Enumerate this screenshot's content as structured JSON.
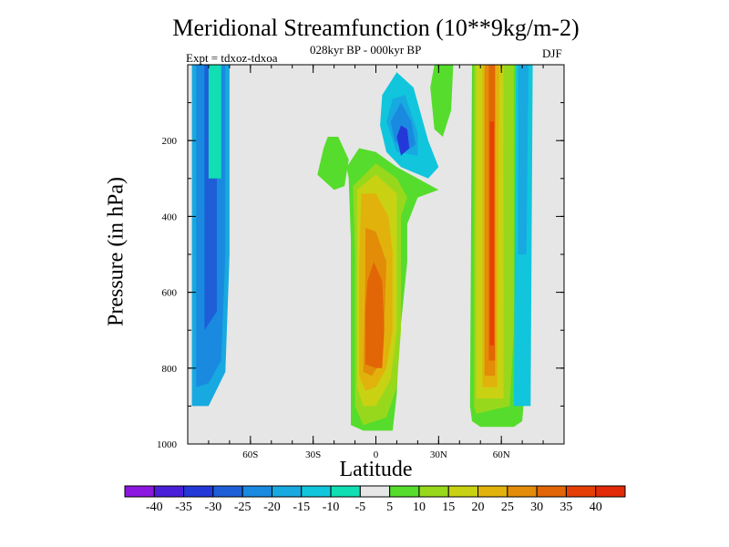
{
  "chart_data": {
    "type": "heatmap",
    "title": "Meridional Streamfunction (10**9kg/m-2)",
    "subtitle": "028kyr BP - 000kyr BP",
    "annotation_left": "Expt = tdxoz-tdxoa",
    "annotation_right": "DJF",
    "xlabel": "Latitude",
    "ylabel": "Pressure (in hPa)",
    "xlim": [
      -90,
      90
    ],
    "ylim": [
      1000,
      0
    ],
    "x_ticks": [
      {
        "value": -60,
        "label": "60S"
      },
      {
        "value": -30,
        "label": "30S"
      },
      {
        "value": 0,
        "label": "0"
      },
      {
        "value": 30,
        "label": "30N"
      },
      {
        "value": 60,
        "label": "60N"
      }
    ],
    "y_ticks": [
      {
        "value": 200,
        "label": "200"
      },
      {
        "value": 400,
        "label": "400"
      },
      {
        "value": 600,
        "label": "600"
      },
      {
        "value": 800,
        "label": "800"
      },
      {
        "value": 1000,
        "label": "1000"
      }
    ],
    "background_color": "#e6e6e6",
    "colorbar": {
      "levels": [
        "-40",
        "-35",
        "-30",
        "-25",
        "-20",
        "-15",
        "-10",
        "-5",
        "5",
        "10",
        "15",
        "20",
        "25",
        "30",
        "35",
        "40"
      ],
      "colors": [
        "#8c17e0",
        "#4a1fd8",
        "#2438d8",
        "#1e5fd8",
        "#1a8ae0",
        "#17a9e0",
        "#11c6dc",
        "#11dfb3",
        "#e6e6e6",
        "#56dc2c",
        "#98d81c",
        "#c8d212",
        "#e2b20c",
        "#e28c08",
        "#e26606",
        "#e63f05",
        "#e22a08"
      ]
    },
    "regions": [
      {
        "level": "-15",
        "color": "#17a9e0",
        "points": [
          [
            -88,
            900
          ],
          [
            -88,
            0
          ],
          [
            -70,
            0
          ],
          [
            -70,
            500
          ],
          [
            -72,
            810
          ],
          [
            -80,
            900
          ]
        ]
      },
      {
        "level": "-20",
        "color": "#1a8ae0",
        "points": [
          [
            -86,
            850
          ],
          [
            -86,
            0
          ],
          [
            -72,
            0
          ],
          [
            -72,
            500
          ],
          [
            -74,
            780
          ],
          [
            -80,
            840
          ]
        ]
      },
      {
        "level": "-25",
        "color": "#1e5fd8",
        "points": [
          [
            -82,
            700
          ],
          [
            -82,
            0
          ],
          [
            -76,
            0
          ],
          [
            -76,
            650
          ]
        ]
      },
      {
        "level": "-5",
        "color": "#11dfb3",
        "points": [
          [
            -80,
            300
          ],
          [
            -80,
            0
          ],
          [
            -74,
            0
          ],
          [
            -74,
            300
          ]
        ]
      },
      {
        "level": "5",
        "color": "#56dc2c",
        "points": [
          [
            -25,
            220
          ],
          [
            -28,
            290
          ],
          [
            -20,
            330
          ],
          [
            -15,
            320
          ],
          [
            -13,
            250
          ],
          [
            -18,
            190
          ],
          [
            -23,
            190
          ]
        ]
      },
      {
        "level": "-10",
        "color": "#11c6dc",
        "points": [
          [
            2,
            160
          ],
          [
            3,
            80
          ],
          [
            10,
            20
          ],
          [
            18,
            60
          ],
          [
            25,
            200
          ],
          [
            30,
            270
          ],
          [
            25,
            300
          ],
          [
            12,
            270
          ],
          [
            5,
            230
          ]
        ]
      },
      {
        "level": "-15",
        "color": "#17a9e0",
        "points": [
          [
            5,
            150
          ],
          [
            8,
            90
          ],
          [
            14,
            80
          ],
          [
            20,
            180
          ],
          [
            20,
            240
          ],
          [
            10,
            230
          ]
        ]
      },
      {
        "level": "-20",
        "color": "#1a8ae0",
        "points": [
          [
            7,
            150
          ],
          [
            12,
            100
          ],
          [
            17,
            150
          ],
          [
            19,
            210
          ],
          [
            14,
            230
          ],
          [
            9,
            200
          ]
        ]
      },
      {
        "level": "-30",
        "color": "#2438d8",
        "points": [
          [
            10,
            190
          ],
          [
            12,
            160
          ],
          [
            15,
            170
          ],
          [
            16,
            220
          ],
          [
            12,
            240
          ]
        ]
      },
      {
        "level": "5",
        "color": "#56dc2c",
        "points": [
          [
            -12,
            460
          ],
          [
            -13,
            300
          ],
          [
            -14,
            270
          ],
          [
            -8,
            220
          ],
          [
            0,
            230
          ],
          [
            10,
            270
          ],
          [
            20,
            300
          ],
          [
            30,
            330
          ],
          [
            20,
            350
          ],
          [
            15,
            420
          ],
          [
            15,
            520
          ],
          [
            11,
            740
          ],
          [
            10,
            870
          ],
          [
            8,
            965
          ],
          [
            -6,
            965
          ],
          [
            -12,
            950
          ],
          [
            -12,
            800
          ]
        ]
      },
      {
        "level": "10",
        "color": "#98d81c",
        "points": [
          [
            -10,
            500
          ],
          [
            -11,
            320
          ],
          [
            0,
            260
          ],
          [
            10,
            300
          ],
          [
            15,
            350
          ],
          [
            12,
            400
          ],
          [
            12,
            700
          ],
          [
            10,
            850
          ],
          [
            5,
            930
          ],
          [
            -6,
            950
          ],
          [
            -10,
            900
          ]
        ]
      },
      {
        "level": "15",
        "color": "#c8d212",
        "points": [
          [
            -9,
            520
          ],
          [
            -9,
            330
          ],
          [
            0,
            290
          ],
          [
            10,
            340
          ],
          [
            10,
            400
          ],
          [
            10,
            700
          ],
          [
            7,
            830
          ],
          [
            0,
            900
          ],
          [
            -6,
            900
          ],
          [
            -9,
            850
          ]
        ]
      },
      {
        "level": "20",
        "color": "#e2b20c",
        "points": [
          [
            -8,
            540
          ],
          [
            -7,
            340
          ],
          [
            0,
            340
          ],
          [
            6,
            400
          ],
          [
            8,
            500
          ],
          [
            8,
            700
          ],
          [
            5,
            800
          ],
          [
            0,
            850
          ],
          [
            -5,
            860
          ],
          [
            -8,
            820
          ]
        ]
      },
      {
        "level": "25",
        "color": "#e28c08",
        "points": [
          [
            -5,
            550
          ],
          [
            -5,
            430
          ],
          [
            0,
            440
          ],
          [
            5,
            520
          ],
          [
            4,
            690
          ],
          [
            3,
            780
          ],
          [
            -2,
            820
          ],
          [
            -6,
            810
          ]
        ]
      },
      {
        "level": "30",
        "color": "#e26606",
        "points": [
          [
            -5,
            640
          ],
          [
            -4,
            570
          ],
          [
            -1,
            520
          ],
          [
            3,
            570
          ],
          [
            4,
            700
          ],
          [
            3,
            800
          ],
          [
            0,
            800
          ],
          [
            -5,
            790
          ]
        ]
      },
      {
        "level": "5",
        "color": "#56dc2c",
        "points": [
          [
            26,
            60
          ],
          [
            28,
            0
          ],
          [
            37,
            0
          ],
          [
            36,
            120
          ],
          [
            32,
            190
          ],
          [
            28,
            170
          ]
        ]
      },
      {
        "level": "5",
        "color": "#56dc2c",
        "points": [
          [
            45,
            900
          ],
          [
            46,
            0
          ],
          [
            73,
            0
          ],
          [
            72,
            800
          ],
          [
            70,
            940
          ],
          [
            66,
            955
          ],
          [
            50,
            955
          ],
          [
            46,
            940
          ]
        ]
      },
      {
        "level": "10",
        "color": "#98d81c",
        "points": [
          [
            47,
            900
          ],
          [
            47,
            0
          ],
          [
            66,
            0
          ],
          [
            66,
            700
          ],
          [
            64,
            900
          ],
          [
            48,
            920
          ]
        ]
      },
      {
        "level": "15",
        "color": "#c8d212",
        "points": [
          [
            48,
            880
          ],
          [
            48,
            0
          ],
          [
            61,
            0
          ],
          [
            61,
            880
          ]
        ]
      },
      {
        "level": "20",
        "color": "#e2b20c",
        "points": [
          [
            51,
            850
          ],
          [
            51,
            0
          ],
          [
            59,
            0
          ],
          [
            58,
            850
          ]
        ]
      },
      {
        "level": "25",
        "color": "#e28c08",
        "points": [
          [
            52,
            820
          ],
          [
            52,
            0
          ],
          [
            57,
            0
          ],
          [
            57,
            820
          ]
        ]
      },
      {
        "level": "30",
        "color": "#e26606",
        "points": [
          [
            54,
            780
          ],
          [
            54,
            0
          ],
          [
            57,
            0
          ],
          [
            57,
            780
          ]
        ]
      },
      {
        "level": "35",
        "color": "#e63f05",
        "points": [
          [
            54.5,
            740
          ],
          [
            54.5,
            150
          ],
          [
            56.5,
            150
          ],
          [
            56.5,
            740
          ]
        ]
      },
      {
        "level": "-10",
        "color": "#11c6dc",
        "points": [
          [
            66,
            900
          ],
          [
            67,
            0
          ],
          [
            75,
            0
          ],
          [
            74,
            900
          ]
        ]
      },
      {
        "level": "-15",
        "color": "#17a9e0",
        "points": [
          [
            68,
            500
          ],
          [
            68,
            0
          ],
          [
            73,
            0
          ],
          [
            72,
            500
          ]
        ]
      }
    ]
  }
}
